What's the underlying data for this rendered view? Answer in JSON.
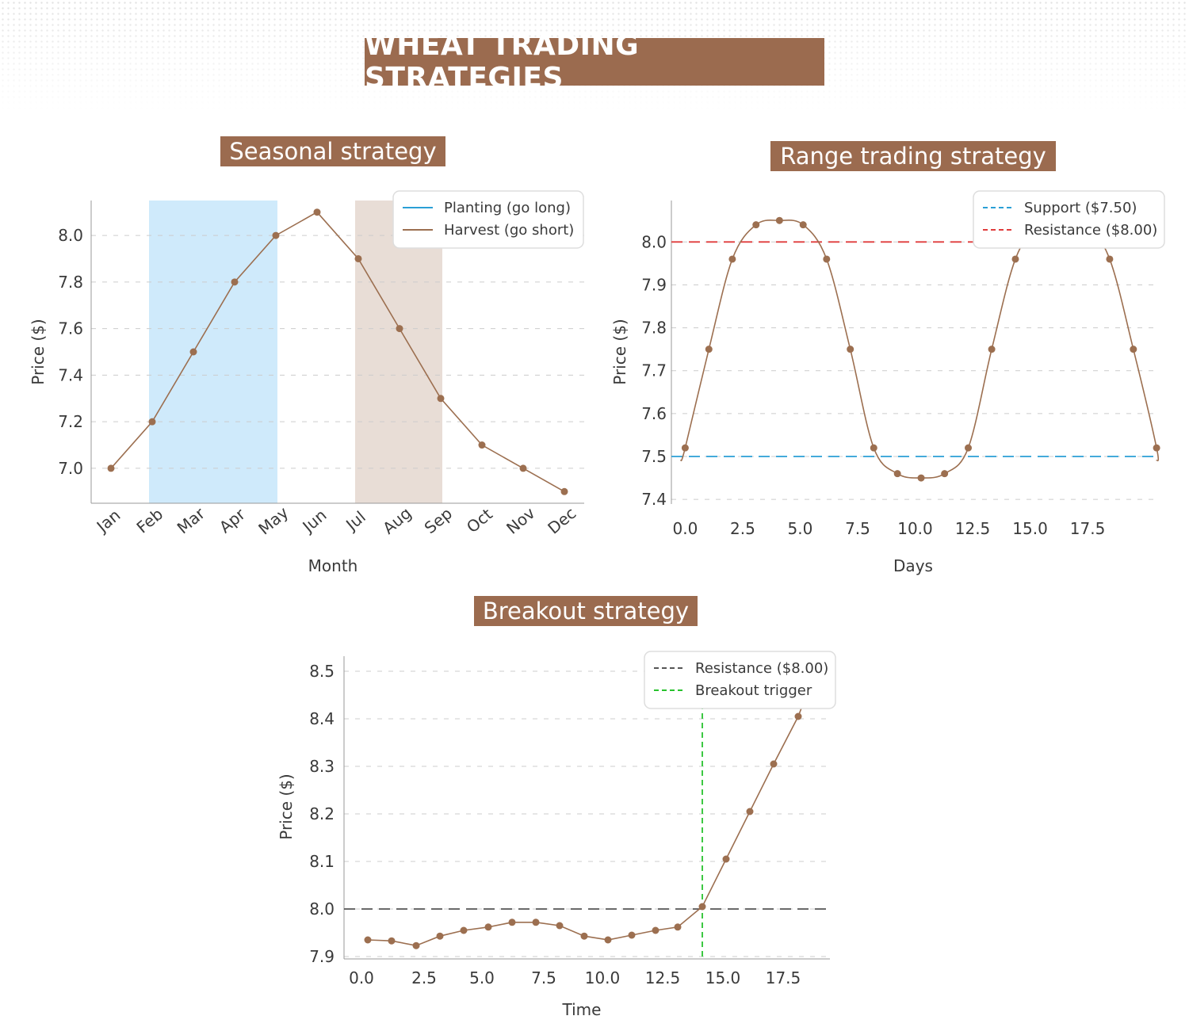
{
  "title": "WHEAT TRADING STRATEGIES",
  "colors": {
    "brown": "#9b6b4f",
    "line": "#9c6f50",
    "blue": "#2a9fd6",
    "red": "#e03c3c",
    "green": "#27c22d",
    "dark": "#555555",
    "planting_fill": "#cfeafb",
    "harvest_fill": "#e8ddd6"
  },
  "chart_data": [
    {
      "type": "line",
      "title": "Seasonal strategy",
      "xlabel": "Month",
      "ylabel": "Price ($)",
      "categories": [
        "Jan",
        "Feb",
        "Mar",
        "Apr",
        "May",
        "Jun",
        "Jul",
        "Aug",
        "Sep",
        "Oct",
        "Nov",
        "Dec"
      ],
      "values": [
        7.0,
        7.2,
        7.5,
        7.8,
        8.0,
        8.1,
        7.9,
        7.6,
        7.3,
        7.1,
        7.0,
        6.9
      ],
      "ylim": [
        6.85,
        8.15
      ],
      "yticks": [
        "7.0",
        "7.2",
        "7.4",
        "7.6",
        "7.8",
        "8.0"
      ],
      "shaded_regions": [
        {
          "name": "Planting (go long)",
          "from": "Feb",
          "to": "May",
          "color": "#cfeafb",
          "legend_color": "#2a9fd6"
        },
        {
          "name": "Harvest (go short)",
          "from": "Jul",
          "to": "Sep",
          "color": "#e8ddd6",
          "legend_color": "#9c6f50"
        }
      ],
      "grid": "y-dashed",
      "legend": "top-right"
    },
    {
      "type": "line",
      "title": "Range trading strategy",
      "xlabel": "Days",
      "ylabel": "Price ($)",
      "x": [
        0.0,
        1.03,
        2.05,
        3.08,
        4.1,
        5.13,
        6.15,
        7.18,
        8.2,
        9.23,
        10.26,
        11.28,
        12.31,
        13.33,
        14.36,
        15.38,
        16.41,
        17.44,
        18.46,
        19.49,
        20.5
      ],
      "values": [
        7.52,
        7.75,
        7.96,
        8.04,
        8.05,
        8.04,
        7.96,
        7.75,
        7.52,
        7.46,
        7.45,
        7.46,
        7.52,
        7.75,
        7.96,
        8.04,
        8.05,
        8.04,
        7.96,
        7.75,
        7.52
      ],
      "xlim": [
        -0.6,
        20.6
      ],
      "ylim": [
        7.4,
        8.1
      ],
      "xticks": [
        "0.0",
        "2.5",
        "5.0",
        "7.5",
        "10.0",
        "12.5",
        "15.0",
        "17.5"
      ],
      "yticks": [
        "7.4",
        "7.5",
        "7.6",
        "7.7",
        "7.8",
        "7.9",
        "8.0"
      ],
      "reference_lines": [
        {
          "name": "Support ($7.50)",
          "y": 7.5,
          "color": "#2a9fd6"
        },
        {
          "name": "Resistance ($8.00)",
          "y": 8.0,
          "color": "#e03c3c"
        }
      ],
      "grid": "y-dashed",
      "legend": "top-right"
    },
    {
      "type": "line",
      "title": "Breakout strategy",
      "xlabel": "Time",
      "ylabel": "Price ($)",
      "x": [
        0,
        1,
        2,
        3,
        4,
        5,
        6,
        7,
        8,
        9,
        10,
        11,
        12,
        13,
        14,
        15,
        16,
        17,
        18,
        19
      ],
      "values": [
        7.935,
        7.933,
        7.923,
        7.943,
        7.955,
        7.962,
        7.972,
        7.972,
        7.965,
        7.943,
        7.935,
        7.945,
        7.955,
        7.962,
        8.005,
        8.105,
        8.205,
        8.305,
        8.405,
        8.505
      ],
      "xlim": [
        -0.8,
        19.3
      ],
      "ylim": [
        7.9,
        8.52
      ],
      "xticks": [
        "0.0",
        "2.5",
        "5.0",
        "7.5",
        "10.0",
        "12.5",
        "15.0",
        "17.5"
      ],
      "yticks": [
        "7.9",
        "8.0",
        "8.1",
        "8.2",
        "8.3",
        "8.4",
        "8.5"
      ],
      "reference_lines": [
        {
          "name": "Resistance ($8.00)",
          "y": 8.0,
          "color": "#555555"
        }
      ],
      "vertical_lines": [
        {
          "name": "Breakout trigger",
          "x": 14,
          "color": "#27c22d"
        }
      ],
      "grid": "y-dashed",
      "legend": "top-right"
    }
  ]
}
